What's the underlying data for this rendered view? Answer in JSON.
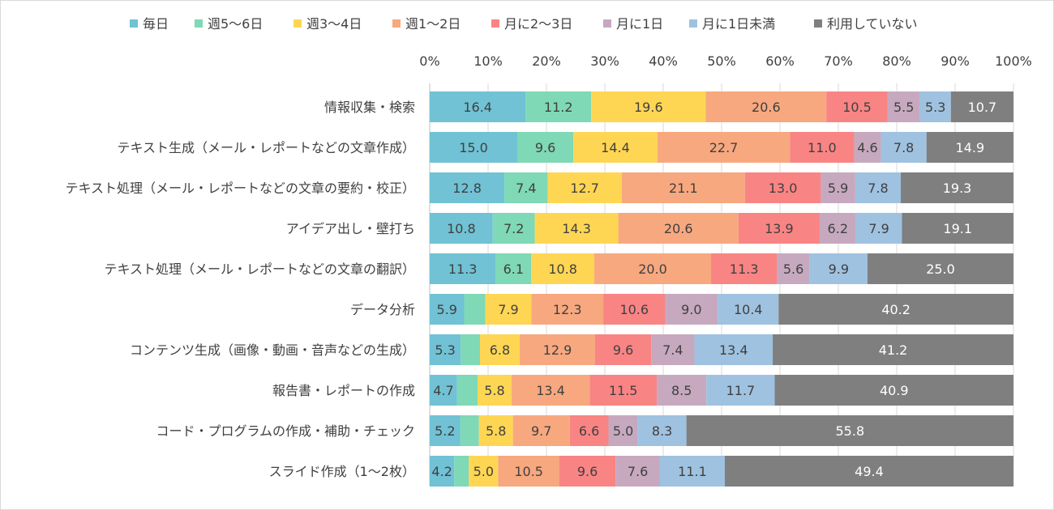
{
  "chart_data": {
    "type": "bar",
    "orientation": "horizontal",
    "stacked": true,
    "percent_scale": true,
    "title": "",
    "xlabel": "",
    "ylabel": "",
    "xlim": [
      0,
      100
    ],
    "legend_position": "top",
    "x_ticks": [
      "0%",
      "10%",
      "20%",
      "30%",
      "40%",
      "50%",
      "60%",
      "70%",
      "80%",
      "90%",
      "100%"
    ],
    "categories": [
      "情報収集・検索",
      "テキスト生成（メール・レポートなどの文章作成）",
      "テキスト処理（メール・レポートなどの文章の要約・校正）",
      "アイデア出し・壁打ち",
      "テキスト処理（メール・レポートなどの文章の翻訳）",
      "データ分析",
      "コンテンツ生成（画像・動画・音声などの生成）",
      "報告書・レポートの作成",
      "コード・プログラムの作成・補助・チェック",
      "スライド作成（1～2枚）"
    ],
    "series": [
      {
        "name": "毎日",
        "color": "#70c2d4",
        "label_color": "#404040",
        "values": [
          16.4,
          15.0,
          12.8,
          10.8,
          11.3,
          5.9,
          5.3,
          4.7,
          5.2,
          4.2
        ]
      },
      {
        "name": "週5～6日",
        "color": "#7fd8b6",
        "label_color": "#404040",
        "values": [
          11.2,
          9.6,
          7.4,
          7.2,
          6.1,
          3.6,
          3.3,
          3.5,
          3.2,
          2.5
        ]
      },
      {
        "name": "週3～4日",
        "color": "#ffd653",
        "label_color": "#404040",
        "values": [
          19.6,
          14.4,
          12.7,
          14.3,
          10.8,
          7.9,
          6.8,
          5.8,
          5.8,
          5.0
        ]
      },
      {
        "name": "週1～2日",
        "color": "#f7a87f",
        "label_color": "#404040",
        "values": [
          20.6,
          22.7,
          21.1,
          20.6,
          20.0,
          12.3,
          12.9,
          13.4,
          9.7,
          10.5
        ]
      },
      {
        "name": "月に2～3日",
        "color": "#f98484",
        "label_color": "#404040",
        "values": [
          10.5,
          11.0,
          13.0,
          13.9,
          11.3,
          10.6,
          9.6,
          11.5,
          6.6,
          9.6
        ]
      },
      {
        "name": "月に1日",
        "color": "#c6a9bf",
        "label_color": "#404040",
        "values": [
          5.5,
          4.6,
          5.9,
          6.2,
          5.6,
          9.0,
          7.4,
          8.5,
          5.0,
          7.6
        ]
      },
      {
        "name": "月に1日未満",
        "color": "#9fc2e0",
        "label_color": "#404040",
        "values": [
          5.3,
          7.8,
          7.8,
          7.9,
          9.9,
          10.4,
          13.4,
          11.7,
          8.3,
          11.1
        ]
      },
      {
        "name": "利用していない",
        "color": "#7f7f7f",
        "label_color": "#ffffff",
        "values": [
          10.7,
          14.9,
          19.3,
          19.1,
          25.0,
          40.2,
          41.2,
          40.9,
          55.8,
          49.4
        ]
      }
    ],
    "hidden_labels": [
      [
        false,
        false,
        false,
        false,
        false,
        false,
        false,
        false
      ],
      [
        false,
        false,
        false,
        false,
        false,
        false,
        false,
        false
      ],
      [
        false,
        false,
        false,
        false,
        false,
        false,
        false,
        false
      ],
      [
        false,
        false,
        false,
        false,
        false,
        false,
        false,
        false
      ],
      [
        false,
        false,
        false,
        false,
        false,
        false,
        false,
        false
      ],
      [
        false,
        true,
        false,
        false,
        false,
        false,
        false,
        false
      ],
      [
        false,
        true,
        false,
        false,
        false,
        false,
        false,
        false
      ],
      [
        false,
        true,
        false,
        false,
        false,
        false,
        false,
        false
      ],
      [
        false,
        true,
        false,
        false,
        false,
        false,
        false,
        false
      ],
      [
        false,
        true,
        false,
        false,
        false,
        false,
        false,
        false
      ]
    ]
  }
}
